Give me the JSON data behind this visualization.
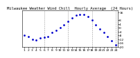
{
  "title": "Milwaukee Weather Wind Chill  Hourly Average  (24 Hours)",
  "title_fontsize": 4.0,
  "hours": [
    1,
    2,
    3,
    4,
    5,
    6,
    7,
    8,
    9,
    10,
    11,
    12,
    13,
    14,
    15,
    16,
    17,
    18,
    19,
    20,
    21,
    22,
    23,
    24
  ],
  "wind_chill": [
    -8,
    -9,
    -12,
    -13,
    -11,
    -10,
    -9,
    -5,
    -3,
    0,
    3,
    7,
    10,
    13,
    14,
    14,
    12,
    8,
    3,
    -1,
    -5,
    -9,
    -14,
    -18
  ],
  "ymin": -20,
  "ymax": 18,
  "dot_color": "#0000cc",
  "bg_color": "#ffffff",
  "grid_color": "#999999",
  "tick_label_fontsize": 3.2,
  "ytick_values": [
    16,
    8,
    4,
    0,
    -4,
    -8,
    -12,
    -16,
    -20
  ],
  "ytick_labels": [
    "16",
    "8",
    "4",
    "0",
    "-4",
    "-8",
    "-12",
    "-16",
    "-20"
  ],
  "vgrid_hours": [
    6,
    12,
    18,
    24
  ]
}
